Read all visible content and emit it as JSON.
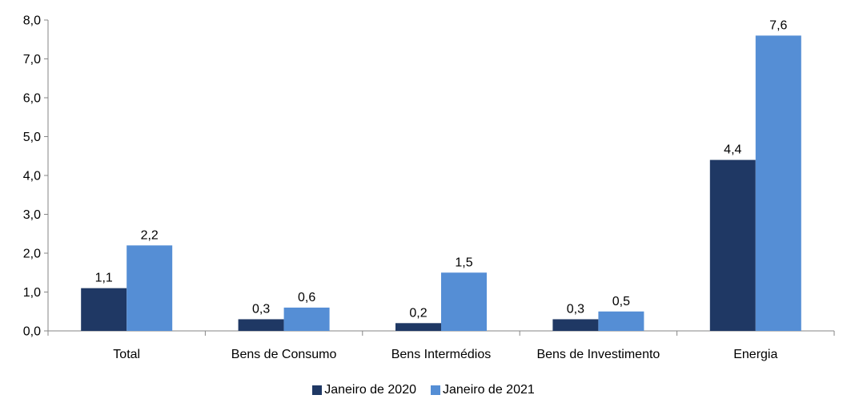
{
  "chart_data": {
    "type": "bar",
    "categories": [
      "Total",
      "Bens de Consumo",
      "Bens Intermédios",
      "Bens de Investimento",
      "Energia"
    ],
    "series": [
      {
        "name": "Janeiro de 2020",
        "values": [
          1.1,
          0.3,
          0.2,
          0.3,
          4.4
        ],
        "labels": [
          "1,1",
          "0,3",
          "0,2",
          "0,3",
          "4,4"
        ],
        "color": "#1f3864"
      },
      {
        "name": "Janeiro de 2021",
        "values": [
          2.2,
          0.6,
          1.5,
          0.5,
          7.6
        ],
        "labels": [
          "2,2",
          "0,6",
          "1,5",
          "0,5",
          "7,6"
        ],
        "color": "#558ed5"
      }
    ],
    "yticks": [
      "0,0",
      "1,0",
      "2,0",
      "3,0",
      "4,0",
      "5,0",
      "6,0",
      "7,0",
      "8,0"
    ],
    "ylim": [
      0,
      8
    ],
    "grid": false,
    "legend_position": "bottom",
    "title": "",
    "xlabel": "",
    "ylabel": ""
  }
}
